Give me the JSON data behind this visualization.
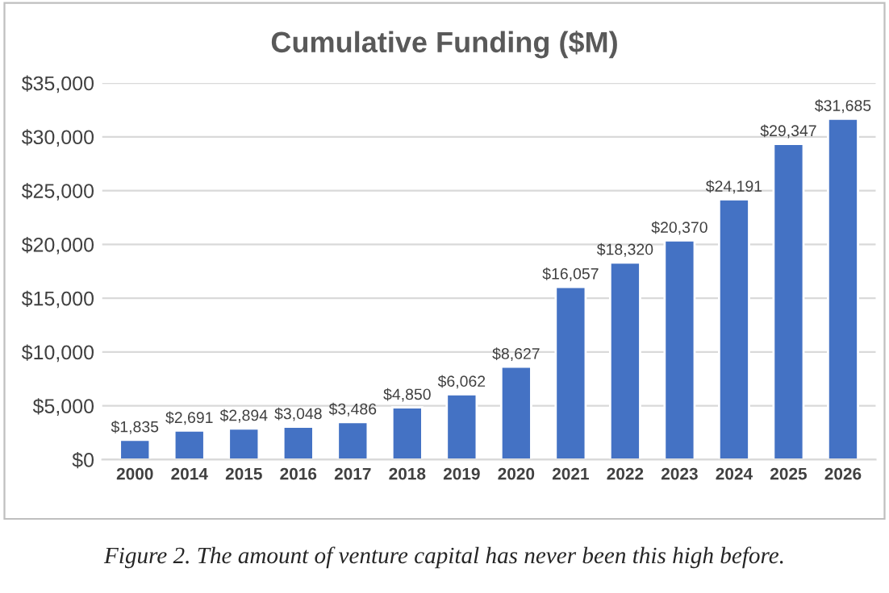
{
  "chart_data": {
    "type": "bar",
    "title": "Cumulative Funding ($M)",
    "categories": [
      "2000",
      "2014",
      "2015",
      "2016",
      "2017",
      "2018",
      "2019",
      "2020",
      "2021",
      "2022",
      "2023",
      "2024",
      "2025",
      "2026"
    ],
    "values": [
      1835,
      2691,
      2894,
      3048,
      3486,
      4850,
      6062,
      8627,
      16057,
      18320,
      20370,
      24191,
      29347,
      31685
    ],
    "value_labels": [
      "$1,835",
      "$2,691",
      "$2,894",
      "$3,048",
      "$3,486",
      "$4,850",
      "$6,062",
      "$8,627",
      "$16,057",
      "$18,320",
      "$20,370",
      "$24,191",
      "$29,347",
      "$31,685"
    ],
    "color": "#4472c4",
    "ylim": [
      0,
      35000
    ],
    "yticks": [
      {
        "value": 0,
        "label": "$0"
      },
      {
        "value": 5000,
        "label": "$5,000"
      },
      {
        "value": 10000,
        "label": "$10,000"
      },
      {
        "value": 15000,
        "label": "$15,000"
      },
      {
        "value": 20000,
        "label": "$20,000"
      },
      {
        "value": 25000,
        "label": "$25,000"
      },
      {
        "value": 30000,
        "label": "$30,000"
      },
      {
        "value": 35000,
        "label": "$35,000"
      }
    ],
    "grid": "y",
    "legend": false,
    "annotations": [
      "Figure 2. The amount of venture capital has never been this high before."
    ]
  }
}
